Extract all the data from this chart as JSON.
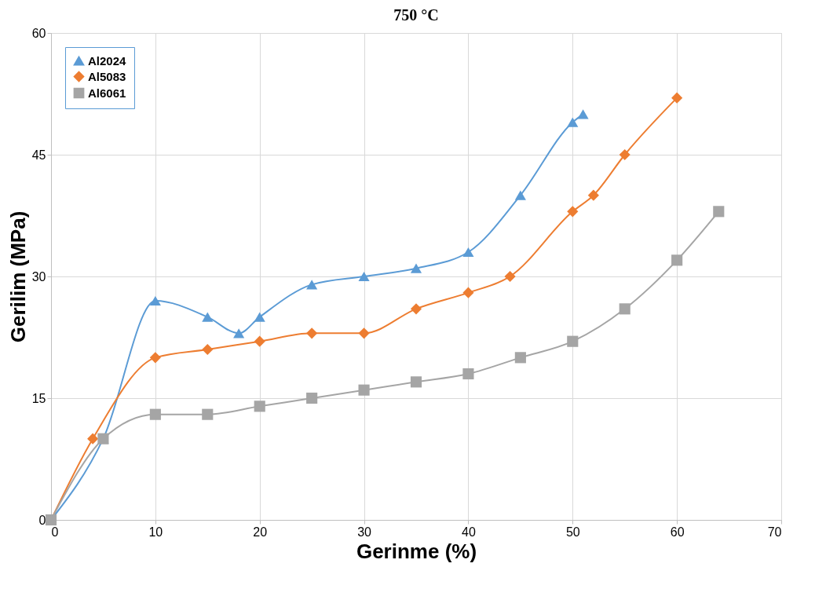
{
  "chart_data": {
    "type": "line",
    "title": "750 °C",
    "xlabel": "Gerinme (%)",
    "ylabel": "Gerilim (MPa)",
    "xlim": [
      0,
      70
    ],
    "xticks": [
      0,
      10,
      20,
      30,
      40,
      50,
      60,
      70
    ],
    "ylim": [
      0,
      60
    ],
    "yticks": [
      0,
      15,
      30,
      45,
      60
    ],
    "grid": true,
    "legend": "top left",
    "series": [
      {
        "name": "Al2024",
        "color": "#5b9bd5",
        "marker": "triangle",
        "x": [
          0,
          5,
          10,
          15,
          18,
          20,
          25,
          30,
          35,
          40,
          45,
          50,
          51
        ],
        "values": [
          0,
          10,
          27,
          25,
          23,
          25,
          29,
          30,
          31,
          33,
          40,
          49,
          50
        ]
      },
      {
        "name": "Al5083",
        "color": "#ed7d31",
        "marker": "diamond",
        "x": [
          0,
          4,
          10,
          15,
          20,
          25,
          30,
          35,
          40,
          44,
          50,
          52,
          55,
          60
        ],
        "values": [
          0,
          10,
          20,
          21,
          22,
          23,
          23,
          26,
          28,
          30,
          38,
          40,
          45,
          52
        ]
      },
      {
        "name": "Al6061",
        "color": "#a5a5a5",
        "marker": "square",
        "x": [
          0,
          5,
          10,
          15,
          20,
          25,
          30,
          35,
          40,
          45,
          50,
          55,
          60,
          64
        ],
        "values": [
          0,
          10,
          13,
          13,
          14,
          15,
          16,
          17,
          18,
          20,
          22,
          26,
          32,
          38
        ]
      }
    ]
  }
}
